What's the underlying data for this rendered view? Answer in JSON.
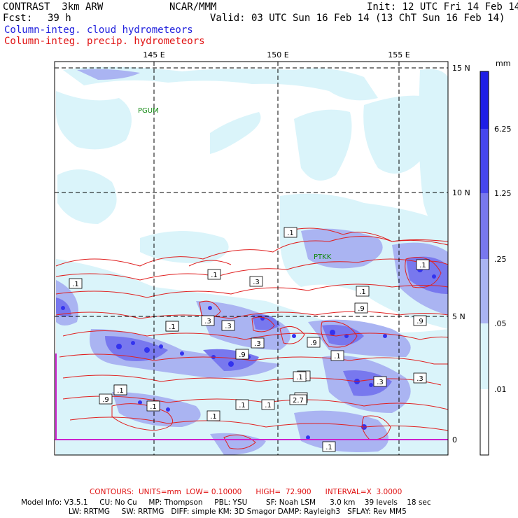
{
  "header": {
    "model": "CONTRAST  3km ARW",
    "forecast_label": "Fcst:",
    "forecast_value": "39 h",
    "center": "NCAR/MMM",
    "init": "Init: 12 UTC Fri 14 Feb 14",
    "valid": "Valid: 03 UTC Sun 16 Feb 14 (13 ChT Sun 16 Feb 14)"
  },
  "fields": {
    "cloud": "Column-integ. cloud hydrometeors",
    "precip": "Column-integ. precip. hydrometeors"
  },
  "map": {
    "longitudes": [
      "145 E",
      "150 E",
      "155 E"
    ],
    "latitudes": [
      "15 N",
      "10 N",
      "5 N",
      "0"
    ],
    "stations": [
      "PGUM",
      "PTKK"
    ],
    "contour_labels": [
      ".1",
      ".1",
      ".1",
      ".3",
      ".1",
      ".9",
      ".1",
      ".3",
      ".3",
      ".3",
      ".9",
      ".9",
      ".1",
      ".1",
      ".3",
      ".1",
      ".9",
      ".1",
      ".1",
      ".1",
      ".3",
      ".1",
      ".9",
      ".3",
      "2.7",
      ".1",
      ".3",
      ".1",
      ".1",
      ".1"
    ]
  },
  "colorbar": {
    "unit": "mm",
    "labels": [
      "6.25",
      "1.25",
      ".25",
      ".05",
      ".01"
    ],
    "colors": [
      "#1e1ee6",
      "#4646ee",
      "#7878ee",
      "#aab4f2",
      "#daf4fa",
      "#ffffff"
    ]
  },
  "footer": {
    "contours_label": "CONTOURS:  UNITS=mm  LOW= 0.10000      HIGH=  72.900      INTERVAL=X  3.0000",
    "line1": "Model Info: V3.5.1     CU: No Cu     MP: Thompson     PBL: YSU        SF: Noah LSM      3.0 km    39 levels    18 sec",
    "line2": "LW: RRTMG     SW: RRTMG   DIFF: simple KM: 3D Smagor DAMP: Rayleigh3   SFLAY: Rev MM5"
  }
}
